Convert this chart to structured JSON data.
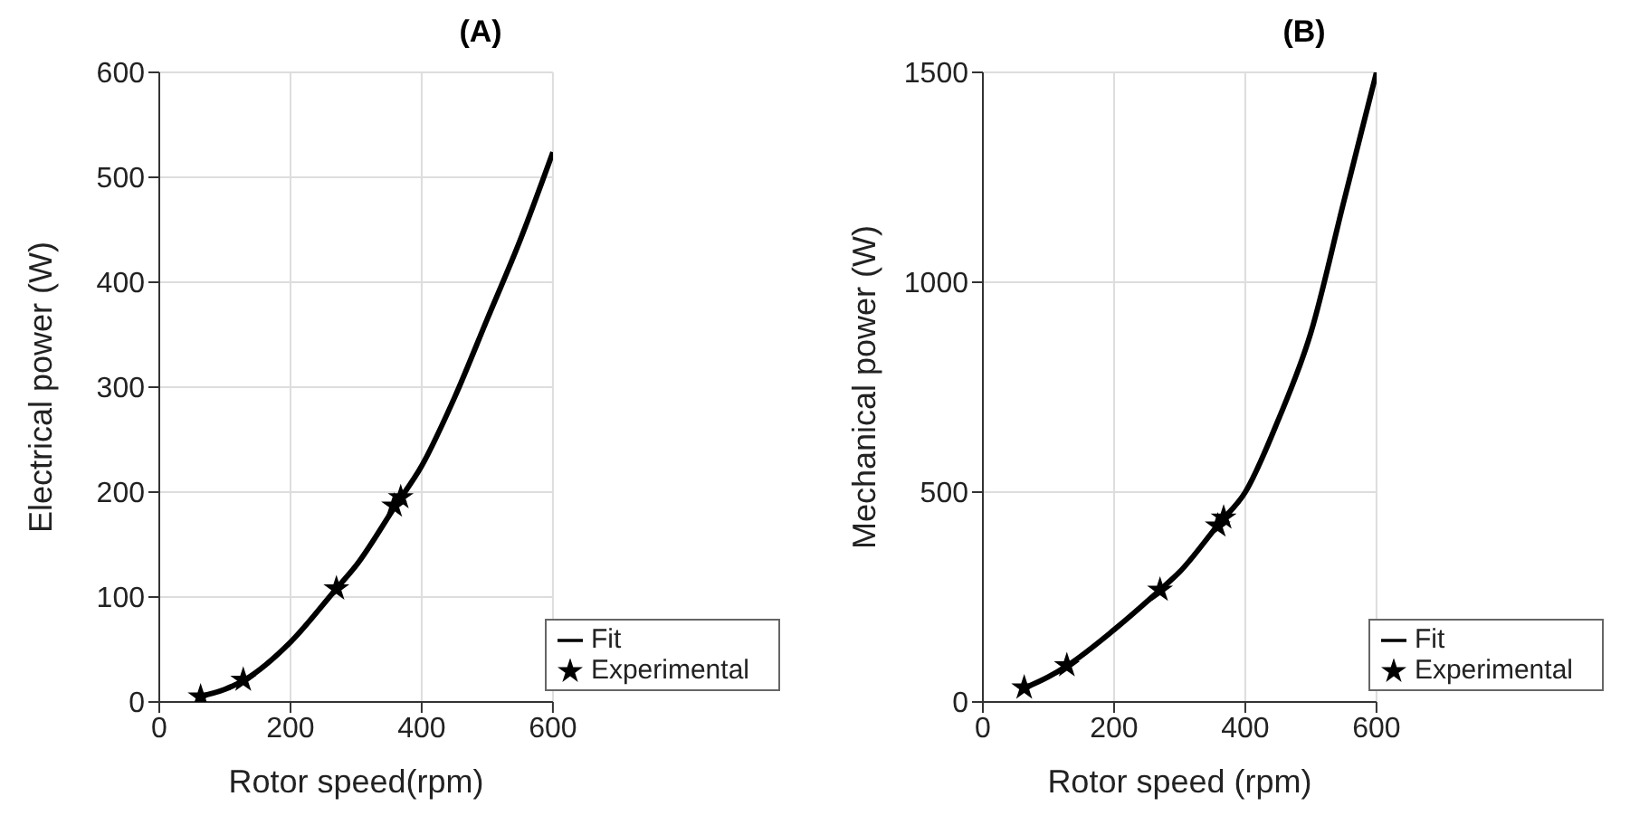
{
  "chart_data": [
    {
      "type": "line",
      "title": "(A)",
      "xlabel": "Rotor speed(rpm)",
      "ylabel": "Electrical power (W)",
      "xlim": [
        0,
        600
      ],
      "ylim": [
        0,
        600
      ],
      "xticks": [
        0,
        200,
        400,
        600
      ],
      "yticks": [
        0,
        100,
        200,
        300,
        400,
        500,
        600
      ],
      "grid": true,
      "legend": "bottom right",
      "series": [
        {
          "name": "Fit",
          "color": "#000000",
          "marker": "none",
          "line_style": "solid",
          "x": [
            60,
            100,
            130,
            200,
            270,
            300,
            360,
            400,
            450,
            500,
            550,
            600
          ],
          "values": [
            5,
            12,
            21,
            57,
            108,
            130,
            187,
            225,
            290,
            365,
            440,
            524
          ]
        },
        {
          "name": "Experimental",
          "type": "scatter",
          "marker": "star",
          "color": "#000000",
          "x": [
            63,
            128,
            270,
            358,
            368
          ],
          "values": [
            5,
            21,
            108,
            187,
            195
          ]
        }
      ]
    },
    {
      "type": "line",
      "title": "(B)",
      "xlabel": "Rotor speed (rpm)",
      "ylabel": "Mechanical power (W)",
      "xlim": [
        0,
        600
      ],
      "ylim": [
        0,
        1500
      ],
      "xticks": [
        0,
        200,
        400,
        600
      ],
      "yticks": [
        0,
        500,
        1000,
        1500
      ],
      "grid": true,
      "legend": "bottom right",
      "series": [
        {
          "name": "Fit",
          "color": "#000000",
          "marker": "none",
          "line_style": "solid",
          "x": [
            60,
            100,
            130,
            200,
            270,
            300,
            360,
            400,
            450,
            500,
            550,
            575,
            600
          ],
          "values": [
            31,
            60,
            88,
            172,
            267,
            310,
            425,
            500,
            671,
            880,
            1191,
            1346,
            1500
          ]
        },
        {
          "name": "Experimental",
          "type": "scatter",
          "marker": "star",
          "color": "#000000",
          "x": [
            63,
            128,
            270,
            358,
            367
          ],
          "values": [
            34,
            87,
            267,
            420,
            439
          ]
        }
      ]
    }
  ]
}
